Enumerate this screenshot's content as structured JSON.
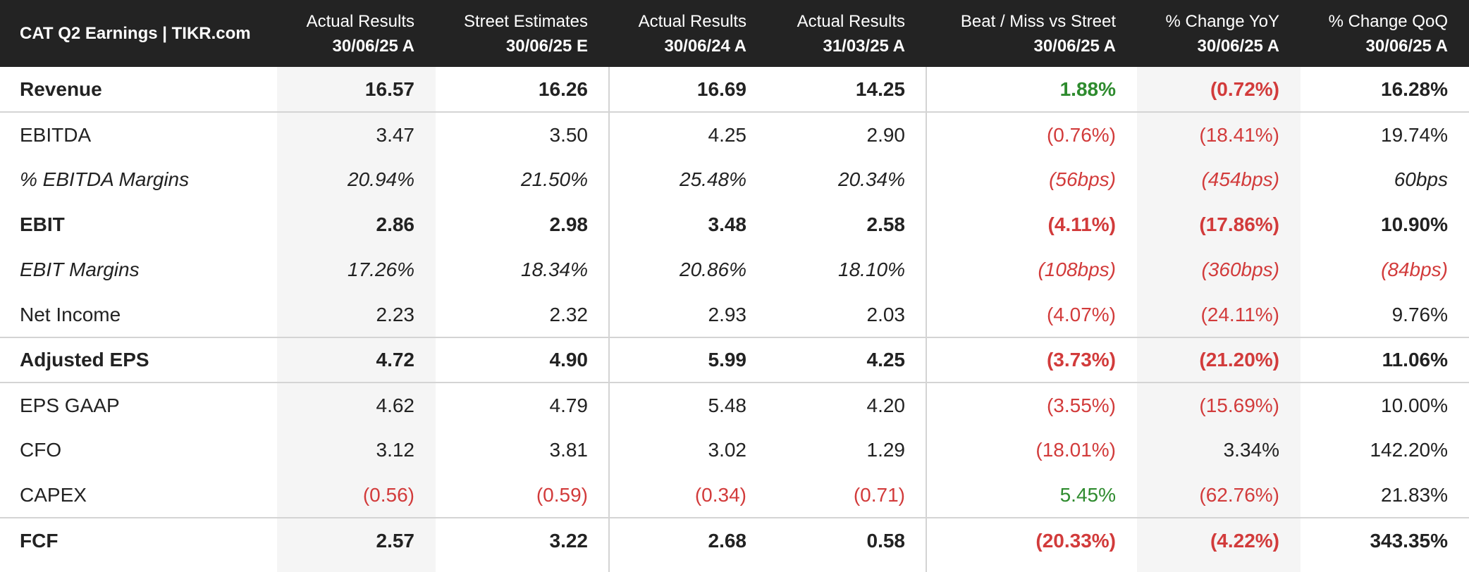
{
  "table": {
    "title": "CAT Q2 Earnings | TIKR.com",
    "columns": [
      {
        "top": "Actual Results",
        "sub": "30/06/25 A"
      },
      {
        "top": "Street Estimates",
        "sub": "30/06/25 E"
      },
      {
        "top": "Actual Results",
        "sub": "30/06/24 A"
      },
      {
        "top": "Actual Results",
        "sub": "31/03/25 A"
      },
      {
        "top": "Beat / Miss vs Street",
        "sub": "30/06/25 A"
      },
      {
        "top": "% Change YoY",
        "sub": "30/06/25 A"
      },
      {
        "top": "% Change QoQ",
        "sub": "30/06/25 A"
      }
    ],
    "rows": [
      {
        "label": "Revenue",
        "values": [
          "16.57",
          "16.26",
          "16.69",
          "14.25",
          "1.88%",
          "(0.72%)",
          "16.28%"
        ]
      },
      {
        "label": "EBITDA",
        "values": [
          "3.47",
          "3.50",
          "4.25",
          "2.90",
          "(0.76%)",
          "(18.41%)",
          "19.74%"
        ]
      },
      {
        "label": "% EBITDA Margins",
        "values": [
          "20.94%",
          "21.50%",
          "25.48%",
          "20.34%",
          "(56bps)",
          "(454bps)",
          "60bps"
        ]
      },
      {
        "label": "EBIT",
        "values": [
          "2.86",
          "2.98",
          "3.48",
          "2.58",
          "(4.11%)",
          "(17.86%)",
          "10.90%"
        ]
      },
      {
        "label": "EBIT Margins",
        "values": [
          "17.26%",
          "18.34%",
          "20.86%",
          "18.10%",
          "(108bps)",
          "(360bps)",
          "(84bps)"
        ]
      },
      {
        "label": "Net Income",
        "values": [
          "2.23",
          "2.32",
          "2.93",
          "2.03",
          "(4.07%)",
          "(24.11%)",
          "9.76%"
        ]
      },
      {
        "label": "Adjusted EPS",
        "values": [
          "4.72",
          "4.90",
          "5.99",
          "4.25",
          "(3.73%)",
          "(21.20%)",
          "11.06%"
        ]
      },
      {
        "label": "EPS GAAP",
        "values": [
          "4.62",
          "4.79",
          "5.48",
          "4.20",
          "(3.55%)",
          "(15.69%)",
          "10.00%"
        ]
      },
      {
        "label": "CFO",
        "values": [
          "3.12",
          "3.81",
          "3.02",
          "1.29",
          "(18.01%)",
          "3.34%",
          "142.20%"
        ]
      },
      {
        "label": "CAPEX",
        "values": [
          "(0.56)",
          "(0.59)",
          "(0.34)",
          "(0.71)",
          "5.45%",
          "(62.76%)",
          "21.83%"
        ]
      },
      {
        "label": "FCF",
        "values": [
          "2.57",
          "3.22",
          "2.68",
          "0.58",
          "(20.33%)",
          "(4.22%)",
          "343.35%"
        ]
      }
    ]
  },
  "colors": {
    "header_bg": "#232323",
    "negative": "#d23b3b",
    "positive": "#2e8b2e",
    "shaded_column": "#f5f5f5"
  }
}
